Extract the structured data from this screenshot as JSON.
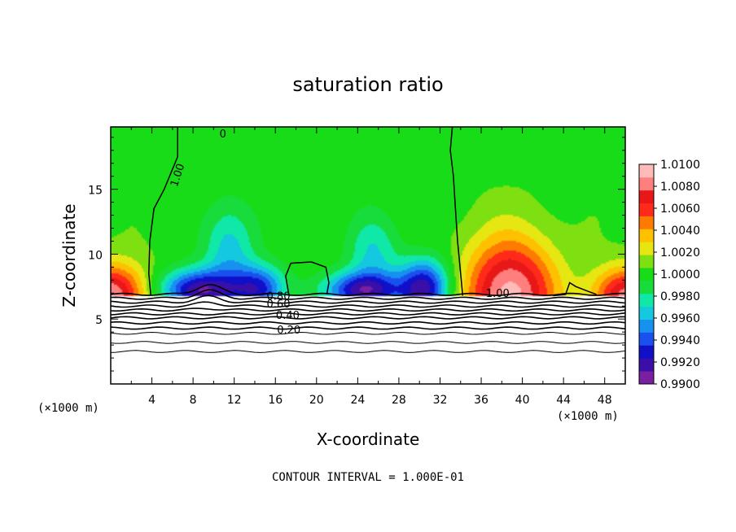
{
  "chart_data": {
    "type": "heatmap",
    "title": "saturation ratio",
    "xlabel": "X-coordinate",
    "ylabel": "Z-coordinate",
    "x_unit_label_left": "(×1000 m)",
    "x_unit_label_right": "(×1000 m)",
    "footer": "CONTOUR INTERVAL = 1.000E-01",
    "xlim": [
      0,
      50
    ],
    "ylim": [
      0,
      19.8
    ],
    "x_ticks": [
      4,
      8,
      12,
      16,
      20,
      24,
      28,
      32,
      36,
      40,
      44,
      48
    ],
    "y_ticks": [
      5,
      10,
      15
    ],
    "colorbar": {
      "labels": [
        "1.0100",
        "1.0080",
        "1.0060",
        "1.0040",
        "1.0020",
        "1.0000",
        "0.9980",
        "0.9960",
        "0.9940",
        "0.9920",
        "0.9900"
      ],
      "min": 0.99,
      "max": 1.01,
      "colors": [
        "#7a1fa2",
        "#3a0fa8",
        "#1010c8",
        "#1a50ee",
        "#1890f0",
        "#14c8e0",
        "#10e8a8",
        "#18dc3c",
        "#18dc18",
        "#7ee010",
        "#e6e612",
        "#ffc000",
        "#ff7a00",
        "#ff2a1a",
        "#e81818",
        "#ff7e7e",
        "#ffbaba"
      ]
    },
    "contour_labels": [
      {
        "text": "0",
        "x": 10.9,
        "y": 19.0
      },
      {
        "text": "1.00",
        "x": 6.8,
        "y": 16.0
      },
      {
        "text": "1.00",
        "x": 37.6,
        "y": 6.7
      },
      {
        "text": "0.80",
        "x": 16.3,
        "y": 6.5
      },
      {
        "text": "0.60",
        "x": 16.3,
        "y": 5.9
      },
      {
        "text": "0.40",
        "x": 17.2,
        "y": 5.0
      },
      {
        "text": "0.20",
        "x": 17.3,
        "y": 3.9
      }
    ],
    "saturation_isoline_1_00": {
      "left_line": [
        [
          6.5,
          19.8
        ],
        [
          6.5,
          17.5
        ],
        [
          5.2,
          15.0
        ],
        [
          4.2,
          13.5
        ],
        [
          3.8,
          11.0
        ],
        [
          3.7,
          8.5
        ],
        [
          3.9,
          6.8
        ]
      ],
      "top_left_line": [
        [
          0.0,
          19.8
        ],
        [
          6.5,
          19.8
        ]
      ],
      "middle_loop": [
        [
          17.3,
          6.9
        ],
        [
          17.0,
          8.3
        ],
        [
          17.5,
          9.3
        ],
        [
          19.5,
          9.4
        ],
        [
          20.9,
          9.0
        ],
        [
          21.2,
          7.8
        ],
        [
          21.0,
          6.9
        ]
      ],
      "right_line": [
        [
          33.2,
          19.8
        ],
        [
          33.0,
          18.0
        ],
        [
          33.3,
          16.0
        ],
        [
          33.5,
          13.5
        ],
        [
          33.7,
          11.0
        ],
        [
          34.0,
          8.5
        ],
        [
          34.2,
          6.8
        ]
      ],
      "bump": [
        [
          43.0,
          6.8
        ],
        [
          44.2,
          6.9
        ],
        [
          44.6,
          7.8
        ],
        [
          45.2,
          7.5
        ],
        [
          46.5,
          7.1
        ],
        [
          47.2,
          6.9
        ]
      ]
    },
    "layers": {
      "background_value": 1.0003,
      "cloud_base_z": 6.8,
      "below_cloud_color": "#ffffff",
      "boundary_lines_z": [
        6.9,
        6.6,
        6.3,
        6.0,
        5.7,
        5.4,
        5.1,
        4.7,
        4.3,
        3.9,
        3.2,
        2.5
      ]
    },
    "features": [
      {
        "kind": "red_dome",
        "x": 38.8,
        "z": 6.8,
        "half_width": 4.4,
        "height": 4.4,
        "peak_value": 1.0095
      },
      {
        "kind": "red_edge",
        "x": 0.0,
        "z": 6.8,
        "half_width": 3.6,
        "height": 2.4,
        "peak_value": 1.009
      },
      {
        "kind": "red_edge",
        "x": 50.0,
        "z": 6.8,
        "half_width": 3.2,
        "height": 2.2,
        "peak_value": 1.008
      },
      {
        "kind": "blue_pocket",
        "x": 8.5,
        "z": 7.2,
        "half_width": 3.8,
        "height": 1.6,
        "peak_value": 0.9915
      },
      {
        "kind": "blue_pocket",
        "x": 14.5,
        "z": 7.3,
        "half_width": 2.5,
        "height": 1.8,
        "peak_value": 0.9935
      },
      {
        "kind": "blue_pocket",
        "x": 24.5,
        "z": 7.2,
        "half_width": 3.6,
        "height": 1.4,
        "peak_value": 0.992
      },
      {
        "kind": "blue_pocket",
        "x": 30.5,
        "z": 7.4,
        "half_width": 2.5,
        "height": 2.2,
        "peak_value": 0.992
      },
      {
        "kind": "cyan_patch",
        "x": 11.5,
        "z": 10.5,
        "half_width": 2.5,
        "height": 3.5,
        "peak_value": 0.9965
      },
      {
        "kind": "cyan_patch",
        "x": 25.5,
        "z": 10.0,
        "half_width": 2.5,
        "height": 3.0,
        "peak_value": 0.997
      }
    ]
  }
}
